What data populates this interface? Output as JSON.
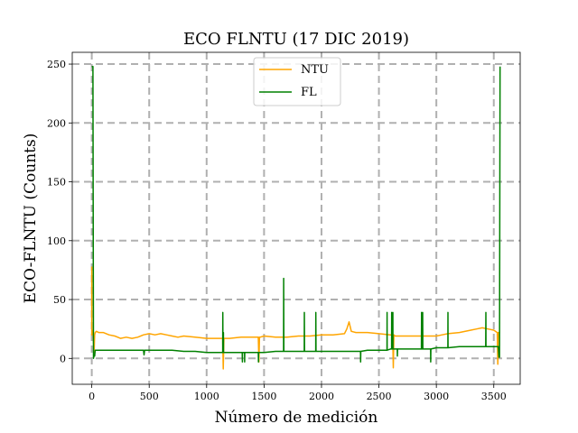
{
  "chart_data": {
    "type": "line",
    "title": "ECO FLNTU (17 DIC 2019)",
    "xlabel": "Número de medición",
    "ylabel": "ECO-FLNTU (Counts)",
    "xlim": [
      -170,
      3730
    ],
    "ylim": [
      -22,
      260
    ],
    "xticks": [
      0,
      500,
      1000,
      1500,
      2000,
      2500,
      3000,
      3500
    ],
    "yticks": [
      0,
      50,
      100,
      150,
      200,
      250
    ],
    "grid": true,
    "legend": "upper-center",
    "series": [
      {
        "name": "NTU",
        "color": "#ffa500",
        "x": [
          0,
          0,
          10,
          20,
          25,
          30,
          40,
          60,
          100,
          150,
          200,
          250,
          300,
          350,
          400,
          450,
          500,
          550,
          600,
          650,
          700,
          750,
          800,
          900,
          1000,
          1100,
          1140,
          1145,
          1150,
          1155,
          1200,
          1300,
          1400,
          1450,
          1455,
          1460,
          1465,
          1500,
          1600,
          1700,
          1800,
          1900,
          2000,
          2100,
          2200,
          2220,
          2240,
          2260,
          2300,
          2400,
          2500,
          2600,
          2620,
          2625,
          2630,
          2640,
          2700,
          2800,
          2900,
          2950,
          3000,
          3050,
          3100,
          3200,
          3300,
          3350,
          3400,
          3450,
          3500,
          3530,
          3535,
          3540,
          3545,
          3555
        ],
        "y": [
          78,
          20,
          24,
          5,
          20,
          22,
          23,
          22,
          22,
          20,
          19,
          17,
          18,
          17,
          18,
          20,
          21,
          20,
          21,
          20,
          19,
          18,
          19,
          18,
          17,
          17,
          17,
          -9,
          17,
          17,
          17,
          18,
          18,
          18,
          -3,
          18,
          18,
          19,
          18,
          18,
          19,
          19,
          20,
          20,
          21,
          25,
          31,
          23,
          22,
          22,
          21,
          20,
          20,
          -8,
          20,
          19,
          19,
          19,
          19,
          19,
          19,
          20,
          21,
          22,
          24,
          25,
          26,
          25,
          24,
          22,
          -5,
          22,
          22,
          22
        ]
      },
      {
        "name": "FL",
        "color": "#008000",
        "x": [
          0,
          0,
          5,
          10,
          15,
          20,
          25,
          30,
          50,
          100,
          200,
          300,
          400,
          450,
          455,
          460,
          465,
          500,
          600,
          700,
          800,
          900,
          1000,
          1100,
          1140,
          1141,
          1142,
          1145,
          1146,
          1147,
          1200,
          1300,
          1310,
          1311,
          1312,
          1330,
          1331,
          1332,
          1400,
          1450,
          1451,
          1452,
          1500,
          1600,
          1670,
          1671,
          1672,
          1700,
          1800,
          1850,
          1851,
          1852,
          1900,
          1950,
          1951,
          1952,
          2000,
          2100,
          2200,
          2300,
          2340,
          2341,
          2342,
          2400,
          2500,
          2570,
          2571,
          2572,
          2600,
          2610,
          2611,
          2612,
          2620,
          2621,
          2622,
          2660,
          2661,
          2662,
          2700,
          2800,
          2870,
          2871,
          2872,
          2880,
          2881,
          2882,
          2950,
          2951,
          2952,
          3000,
          3100,
          3101,
          3102,
          3200,
          3300,
          3400,
          3430,
          3431,
          3432,
          3500,
          3540,
          3545,
          3550,
          3555
        ],
        "y": [
          248,
          248,
          248,
          248,
          0,
          3,
          2,
          7,
          7,
          7,
          7,
          7,
          7,
          7,
          3,
          7,
          7,
          7,
          7,
          7,
          6,
          6,
          5,
          5,
          5,
          39,
          5,
          5,
          22,
          5,
          5,
          5,
          5,
          -3,
          5,
          5,
          -3,
          5,
          5,
          5,
          -3,
          5,
          5,
          6,
          6,
          68,
          6,
          6,
          6,
          6,
          39,
          6,
          6,
          6,
          39,
          6,
          6,
          6,
          6,
          6,
          6,
          -3,
          6,
          7,
          7,
          7,
          39,
          7,
          8,
          8,
          39,
          8,
          8,
          39,
          8,
          8,
          2,
          8,
          8,
          8,
          8,
          39,
          8,
          8,
          39,
          8,
          8,
          -3,
          8,
          9,
          9,
          39,
          9,
          10,
          10,
          10,
          10,
          39,
          10,
          10,
          10,
          1,
          1,
          248
        ]
      }
    ]
  }
}
